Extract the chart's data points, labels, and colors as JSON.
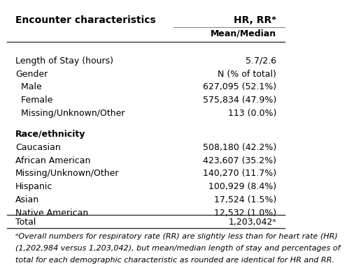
{
  "col1_header": "Encounter characteristics",
  "col2_header": "HR, RRᵃ",
  "col2_subheader": "Mean/Median",
  "rows": [
    {
      "label": "Length of Stay (hours)",
      "value": "5.7/2.6",
      "indent": 0,
      "bold": false,
      "empty": false
    },
    {
      "label": "Gender",
      "value": "N (% of total)",
      "indent": 0,
      "bold": false,
      "empty": false
    },
    {
      "label": "  Male",
      "value": "627,095 (52.1%)",
      "indent": 1,
      "bold": false,
      "empty": false
    },
    {
      "label": "  Female",
      "value": "575,834 (47.9%)",
      "indent": 1,
      "bold": false,
      "empty": false
    },
    {
      "label": "  Missing/Unknown/Other",
      "value": "113 (0.0%)",
      "indent": 1,
      "bold": false,
      "empty": false
    },
    {
      "label": "",
      "value": "",
      "indent": 0,
      "bold": false,
      "empty": true
    },
    {
      "label": "Race/ethnicity",
      "value": "",
      "indent": 0,
      "bold": true,
      "empty": false
    },
    {
      "label": "Caucasian",
      "value": "508,180 (42.2%)",
      "indent": 0,
      "bold": false,
      "empty": false
    },
    {
      "label": "African American",
      "value": "423,607 (35.2%)",
      "indent": 0,
      "bold": false,
      "empty": false
    },
    {
      "label": "Missing/Unknown/Other",
      "value": "140,270 (11.7%)",
      "indent": 0,
      "bold": false,
      "empty": false
    },
    {
      "label": "Hispanic",
      "value": "100,929 (8.4%)",
      "indent": 0,
      "bold": false,
      "empty": false
    },
    {
      "label": "Asian",
      "value": "17,524 (1.5%)",
      "indent": 0,
      "bold": false,
      "empty": false
    },
    {
      "label": "Native American",
      "value": "12,532 (1.0%)",
      "indent": 0,
      "bold": false,
      "empty": false
    }
  ],
  "total_label": "Total",
  "total_value": "1,203,042ᵃ",
  "footnote_lines": [
    "ᵃOverall numbers for respiratory rate (RR) are slightly less than for heart rate (HR)",
    "(1,202,984 versus 1,203,042), but mean/median length of stay and percentages of",
    "total for each demographic characteristic as rounded are identical for HR and RR."
  ],
  "bg_color": "#ffffff",
  "text_color": "#000000",
  "line_color": "#888888",
  "font_size": 9.0,
  "header_font_size": 10.0,
  "footnote_font_size": 8.0
}
